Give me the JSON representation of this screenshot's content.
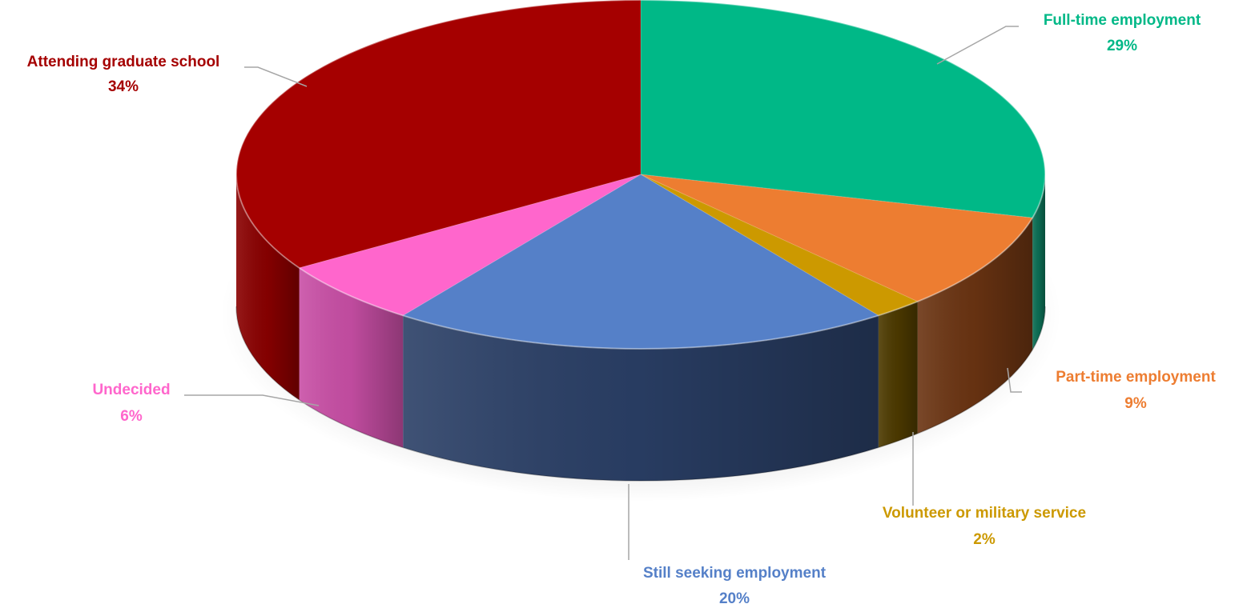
{
  "chart_data": {
    "type": "pie",
    "style": "3d-pie",
    "title": "",
    "legend": "none",
    "slices": [
      {
        "label": "Full-time employment",
        "value": 29,
        "value_label": "29%",
        "color": "#00B887",
        "side_color": "#0C6F55"
      },
      {
        "label": "Part-time employment",
        "value": 9,
        "value_label": "9%",
        "color": "#ED7D31",
        "side_color": "#6B3412"
      },
      {
        "label": "Volunteer or military service",
        "value": 2,
        "value_label": "2%",
        "color": "#CC9900",
        "side_color": "#4D3A00"
      },
      {
        "label": "Still seeking employment",
        "value": 20,
        "value_label": "20%",
        "color": "#5580C8",
        "side_color": "#2A3F66"
      },
      {
        "label": "Undecided",
        "value": 6,
        "value_label": "6%",
        "color": "#FF66CC",
        "side_color": "#C94FA6"
      },
      {
        "label": "Attending graduate school",
        "value": 34,
        "value_label": "34%",
        "color": "#A50000",
        "side_color": "#8A0000"
      }
    ]
  }
}
